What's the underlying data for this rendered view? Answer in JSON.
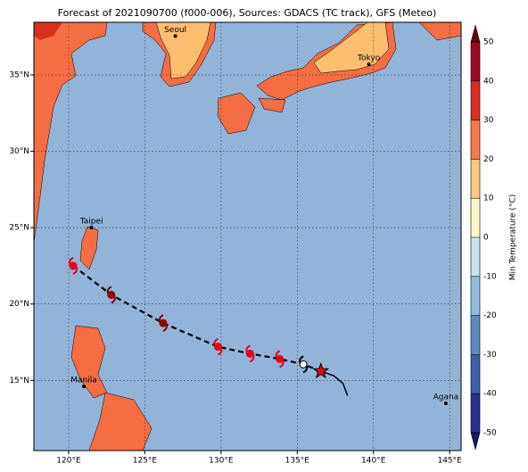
{
  "map": {
    "title": "Forecast of 2021090700 (f000-006), Sources: GDACS (TC track), GFS (Meteo)",
    "lonlim": [
      117.72,
      145.75
    ],
    "latlim": [
      10.4,
      38.45
    ],
    "lonticks": [
      {
        "value": 120,
        "label": "120°E"
      },
      {
        "value": 125,
        "label": "125°E"
      },
      {
        "value": 130,
        "label": "130°E"
      },
      {
        "value": 135,
        "label": "135°E"
      },
      {
        "value": 140,
        "label": "140°E"
      },
      {
        "value": 145,
        "label": "145°E"
      }
    ],
    "latticks": [
      {
        "value": 15,
        "label": "15°N"
      },
      {
        "value": 20,
        "label": "20°N"
      },
      {
        "value": 25,
        "label": "25°N"
      },
      {
        "value": 30,
        "label": "30°N"
      },
      {
        "value": 35,
        "label": "35°N"
      }
    ],
    "cities": [
      {
        "name": "Seoul",
        "lon": 127.0,
        "lat": 37.55
      },
      {
        "name": "Tokyo",
        "lon": 139.7,
        "lat": 35.7
      },
      {
        "name": "Taipei",
        "lon": 121.5,
        "lat": 25.0
      },
      {
        "name": "Manila",
        "lon": 121.0,
        "lat": 14.6
      },
      {
        "name": "Agana",
        "lon": 144.75,
        "lat": 13.5
      }
    ],
    "track": {
      "lon": [
        120.3,
        122.8,
        126.2,
        129.8,
        131.9,
        133.85,
        135.4
      ],
      "lat": [
        22.5,
        20.6,
        18.75,
        17.2,
        16.75,
        16.4,
        16.05
      ],
      "colors": [
        "#e8001a",
        "#8b0000",
        "#8b0000",
        "#e8001a",
        "#e8001a",
        "#e8001a",
        "#ffffff"
      ]
    },
    "current": {
      "lon": 136.55,
      "lat": 15.6
    },
    "forecast": {
      "lon": [
        136.55,
        137.4,
        138.0,
        138.3
      ],
      "lat": [
        15.6,
        15.3,
        14.8,
        14.0
      ]
    },
    "colorbar": {
      "label": "Min Temperature (°C)",
      "ticks": [
        -50,
        -40,
        -30,
        -20,
        -10,
        0,
        10,
        20,
        30,
        40,
        50
      ],
      "colors": [
        "#2c2f8e",
        "#3f5da8",
        "#5b8cc0",
        "#8fbcdb",
        "#c6e4ef",
        "#fdf7c6",
        "#fdc980",
        "#f4784a",
        "#d7301f",
        "#9c0a22"
      ]
    }
  }
}
